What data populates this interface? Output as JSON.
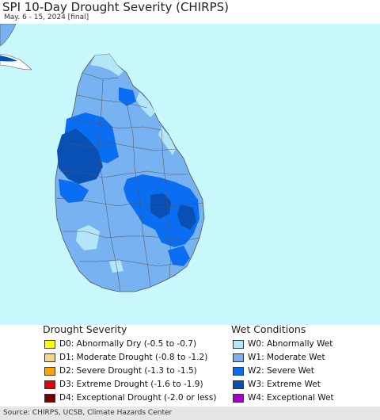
{
  "title": "SPI 10-Day Drought Severity (CHIRPS)",
  "subtitle": "May. 6 - 15, 2024 [final]",
  "map": {
    "colors": {
      "ocean": "#c8f8fb",
      "land_other": "#ffffff",
      "w0": "#b4e6fa",
      "w1": "#78b2f0",
      "w2": "#0a6ef2",
      "w3": "#0850b4",
      "boundary": "#555555"
    }
  },
  "legend": {
    "drought": {
      "heading": "Drought Severity",
      "items": [
        {
          "code": "D0",
          "label": "D0: Abnormally Dry (-0.5 to -0.7)",
          "color": "#ffff00"
        },
        {
          "code": "D1",
          "label": "D1: Moderate Drought (-0.8 to -1.2)",
          "color": "#ffd28c"
        },
        {
          "code": "D2",
          "label": "D2: Severe Drought (-1.3 to -1.5)",
          "color": "#ffa500"
        },
        {
          "code": "D3",
          "label": "D3: Extreme Drought (-1.6 to -1.9)",
          "color": "#e60000"
        },
        {
          "code": "D4",
          "label": "D4: Exceptional Drought (-2.0 or less)",
          "color": "#730000"
        }
      ]
    },
    "wet": {
      "heading": "Wet Conditions",
      "items": [
        {
          "code": "W0",
          "label": "W0: Abnormally Wet",
          "color": "#b4e6fa"
        },
        {
          "code": "W1",
          "label": "W1: Moderate Wet",
          "color": "#78b2f0"
        },
        {
          "code": "W2",
          "label": "W2: Severe Wet",
          "color": "#0a6ef2"
        },
        {
          "code": "W3",
          "label": "W3: Extreme Wet",
          "color": "#0850b4"
        },
        {
          "code": "W4",
          "label": "W4: Exceptional Wet",
          "color": "#a000c8"
        }
      ]
    }
  },
  "source": "Source: CHIRPS, UCSB, Climate Hazards Center"
}
